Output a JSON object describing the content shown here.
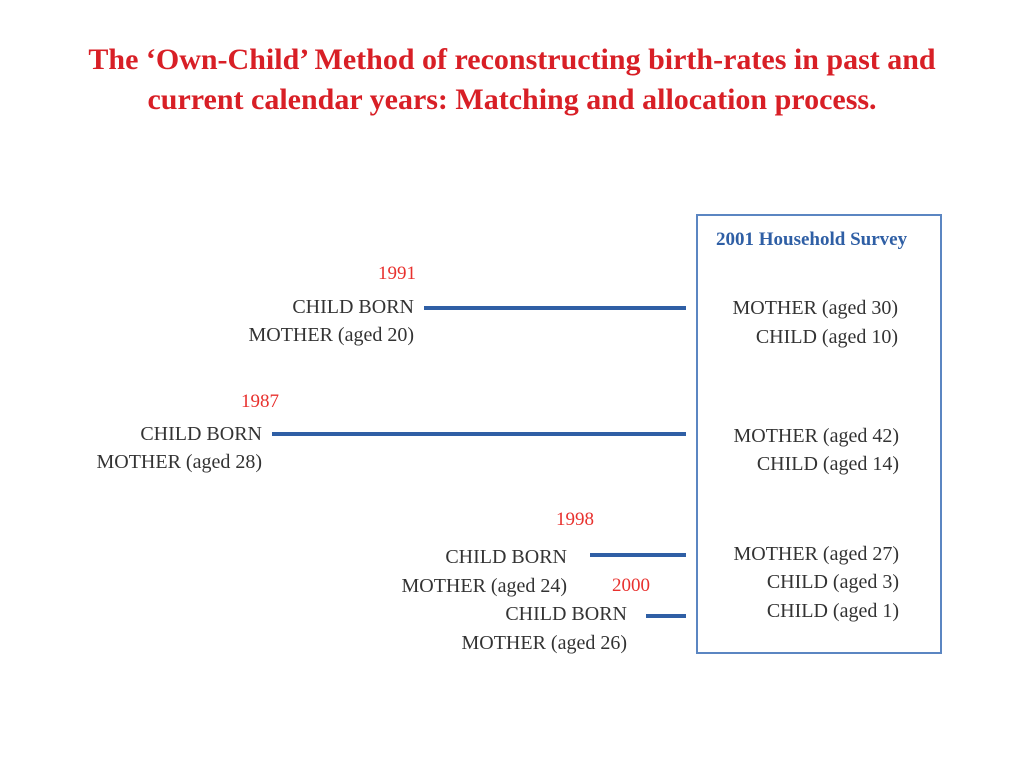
{
  "title": "The ‘Own-Child’ Method of reconstructing birth-rates in past and current calendar years: Matching and allocation process.",
  "survey": {
    "heading": "2001 Household Survey"
  },
  "groups": [
    {
      "year": "1991",
      "child_born": "CHILD BORN",
      "mother_at_birth": "MOTHER (aged 20)",
      "survey_lines": [
        "MOTHER (aged 30)",
        "CHILD (aged 10)"
      ]
    },
    {
      "year": "1987",
      "child_born": "CHILD BORN",
      "mother_at_birth": "MOTHER (aged 28)",
      "survey_lines": [
        "MOTHER (aged 42)",
        "CHILD (aged 14)"
      ]
    },
    {
      "year": "1998",
      "child_born": "CHILD BORN",
      "mother_at_birth": "MOTHER (aged 24)",
      "survey_lines": [
        "MOTHER (aged 27)",
        "CHILD (aged 3)",
        "CHILD (aged 1)"
      ]
    },
    {
      "year": "2000",
      "child_born": "CHILD BORN",
      "mother_at_birth": "MOTHER (aged 26)"
    }
  ],
  "colors": {
    "title": "#d81f26",
    "year": "#e8312e",
    "connector": "#2f5fa5",
    "box_border": "#5b86c2",
    "text": "#333333"
  }
}
